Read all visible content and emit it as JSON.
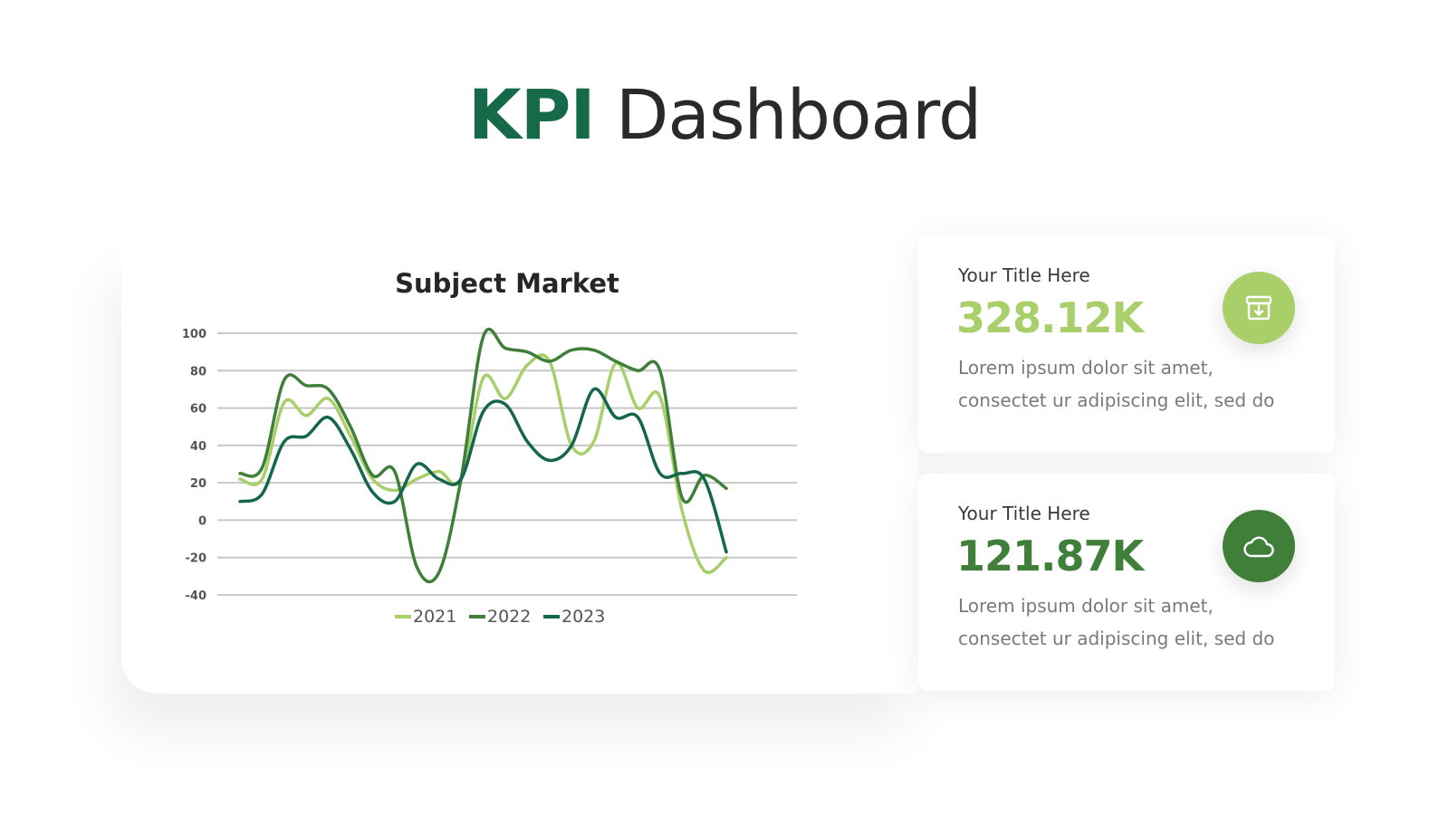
{
  "header": {
    "title_strong": "KPI",
    "title_rest": "Dashboard"
  },
  "colors": {
    "brand_dark": "#166a4a",
    "light_green": "#a8cf6a",
    "mid_green": "#3f7f3a",
    "dark_green": "#14664d"
  },
  "cards": [
    {
      "label": "Your Title Here",
      "value": "328.12K",
      "description": "Lorem ipsum dolor sit amet, consectet ur adipiscing elit, sed do",
      "icon": "archive-download-icon",
      "color": "#a8cf6a"
    },
    {
      "label": "Your Title Here",
      "value": "121.87K",
      "description": "Lorem ipsum dolor sit amet, consectet ur adipiscing elit, sed do",
      "icon": "cloud-icon",
      "color": "#3f7f3a"
    }
  ],
  "chart_data": {
    "type": "line",
    "title": "Subject Market",
    "xlabel": "",
    "ylabel": "",
    "ylim": [
      -40,
      100
    ],
    "yticks": [
      100,
      80,
      60,
      40,
      20,
      0,
      -20,
      -40
    ],
    "grid": true,
    "legend": "bottom",
    "series": [
      {
        "name": "2021",
        "color": "#a8cf6a",
        "values": [
          22,
          22,
          63,
          56,
          65,
          45,
          22,
          16,
          22,
          26,
          22,
          76,
          65,
          83,
          85,
          40,
          42,
          84,
          60,
          66,
          5,
          -27,
          -20
        ]
      },
      {
        "name": "2022",
        "color": "#3f7f3a",
        "values": [
          25,
          28,
          75,
          72,
          70,
          50,
          24,
          26,
          -25,
          -28,
          22,
          98,
          92,
          90,
          85,
          91,
          91,
          85,
          80,
          80,
          12,
          24,
          17
        ]
      },
      {
        "name": "2023",
        "color": "#14664d",
        "values": [
          10,
          14,
          42,
          45,
          55,
          38,
          15,
          10,
          30,
          22,
          22,
          58,
          62,
          42,
          32,
          40,
          70,
          55,
          55,
          25,
          25,
          22,
          -17
        ]
      }
    ]
  }
}
